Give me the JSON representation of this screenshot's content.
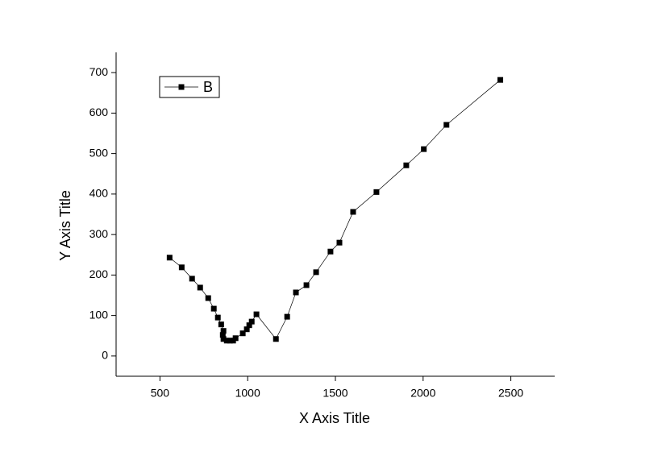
{
  "chart_data": {
    "type": "line",
    "xlabel": "X Axis Title",
    "ylabel": "Y Axis Title",
    "xlim": [
      250,
      2750
    ],
    "xticks": [
      500,
      1000,
      1500,
      2000,
      2500
    ],
    "ylim": [
      -50,
      750
    ],
    "yticks": [
      0,
      100,
      200,
      300,
      400,
      500,
      600,
      700
    ],
    "legend": "upper left",
    "series": [
      {
        "name": "B",
        "color": "#000000",
        "x": [
          555,
          624,
          683,
          729,
          775,
          807,
          830,
          849,
          862,
          858,
          862,
          881,
          899,
          917,
          931,
          972,
          995,
          1009,
          1023,
          1050,
          1161,
          1225,
          1275,
          1335,
          1390,
          1472,
          1523,
          1601,
          1734,
          1904,
          2004,
          2133,
          2440
        ],
        "values": [
          243,
          219,
          191,
          169,
          143,
          117,
          95,
          78,
          62,
          52,
          42,
          38,
          38,
          38,
          44,
          56,
          66,
          76,
          85,
          103,
          42,
          97,
          157,
          175,
          207,
          258,
          280,
          356,
          405,
          471,
          511,
          571,
          682
        ]
      }
    ]
  }
}
